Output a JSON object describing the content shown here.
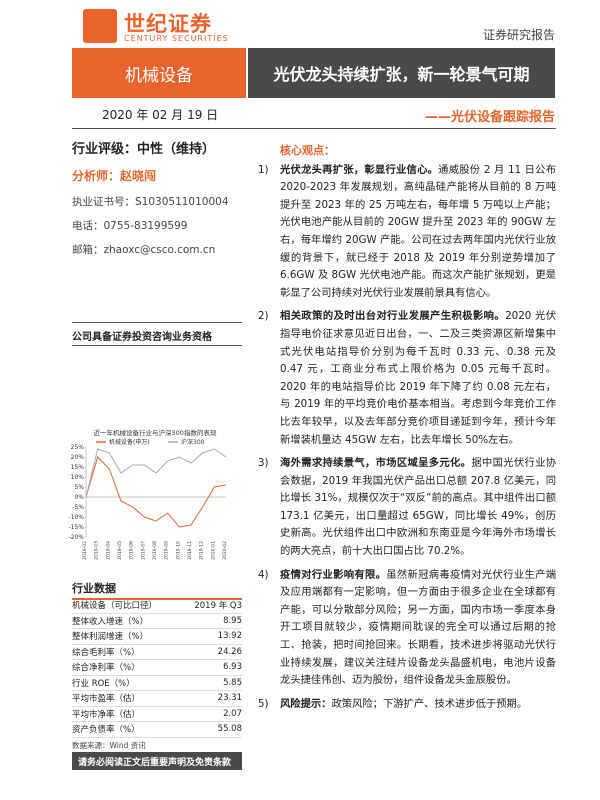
{
  "header": {
    "logo_cn": "世纪证券",
    "logo_en": "CENTURY SECURITIES",
    "doc_type": "证券研究报告",
    "sector": "机械设备",
    "headline": "光伏龙头持续扩张，新一轮景气可期",
    "date": "2020 年 02 月 19 日",
    "subtitle": "——光伏设备跟踪报告"
  },
  "sidebar": {
    "rating": "行业评级：中性（维持）",
    "analyst": "分析师：赵晓闯",
    "license": "执业证书号：S1030511010004",
    "phone": "电话：0755-83199599",
    "email": "邮箱：zhaoxc@csco.com.cn",
    "qualification": "公司具备证券投资咨询业务资格"
  },
  "chart_data": {
    "type": "line",
    "title": "近一年机械设备行业与沪深300指数的表现",
    "categories": [
      "2019-02",
      "2019-03",
      "2019-04",
      "2019-05",
      "2019-06",
      "2019-07",
      "2019-08",
      "2019-09",
      "2019-10",
      "2019-11",
      "2019-12",
      "2020-01",
      "2020-02"
    ],
    "x": [
      0,
      1,
      2,
      3,
      4,
      5,
      6,
      7,
      8,
      9,
      10,
      11,
      12
    ],
    "series": [
      {
        "name": "机械设备(申万)",
        "color": "#e8642c",
        "values": [
          0,
          20,
          14,
          -2,
          -5,
          -10,
          -12,
          -8,
          -15,
          -14,
          -5,
          5,
          6
        ]
      },
      {
        "name": "沪深300",
        "color": "#aaaaaa",
        "values": [
          0,
          24,
          22,
          12,
          16,
          16,
          12,
          18,
          20,
          17,
          22,
          24,
          20
        ]
      }
    ],
    "xlim": [
      0,
      12
    ],
    "ylim": [
      -20,
      25
    ],
    "yticks": [
      {
        "value": 25,
        "label": "25%"
      },
      {
        "value": 20,
        "label": "20%"
      },
      {
        "value": 15,
        "label": "15%"
      },
      {
        "value": 10,
        "label": "10%"
      },
      {
        "value": 5,
        "label": "5%"
      },
      {
        "value": 0,
        "label": "0%"
      },
      {
        "value": -5,
        "label": "-5%"
      },
      {
        "value": -10,
        "label": "-10%"
      },
      {
        "value": -15,
        "label": "-15%"
      },
      {
        "value": -20,
        "label": "-20%"
      }
    ]
  },
  "industry_table": {
    "title": "行业数据",
    "rows": [
      [
        "机械设备（可比口径）",
        "2019 年 Q3"
      ],
      [
        "整体收入增速（%）",
        "8.95"
      ],
      [
        "整体利润增速（%）",
        "13.92"
      ],
      [
        "综合毛利率（%）",
        "24.26"
      ],
      [
        "综合净利率（%）",
        "6.93"
      ],
      [
        "行业 ROE（%）",
        "5.85"
      ],
      [
        "平均市盈率（估）",
        "23.31"
      ],
      [
        "平均市净率（估）",
        "2.07"
      ],
      [
        "资产负债率（%）",
        "55.08"
      ]
    ],
    "source": "数据来源：Wind 资讯"
  },
  "footer": "请务必阅读正文后重要声明及免责条款",
  "core": {
    "title": "核心观点：",
    "items": [
      {
        "num": "1)",
        "lead": "光伏龙头再扩张，彰显行业信心。",
        "text": "通威股份 2 月 11 日公布 2020-2023 年发展规划，高纯晶硅产能将从目前的 8 万吨提升至 2023 年的 25 万吨左右，每年增 5 万吨以上产能；光伏电池产能从目前的 20GW 提升至 2023 年的 90GW 左右，每年增约 20GW 产能。公司在过去两年国内光伏行业放缓的背景下，就已经于 2018 及 2019 年分别逆势增加了 6.6GW 及 8GW 光伏电池产能。而这次产能扩张规划，更是彰显了公司持续对光伏行业发展前景具有信心。"
      },
      {
        "num": "2)",
        "lead": "相关政策的及时出台对行业发展产生积极影响。",
        "text": "2020 光伏指导电价征求意见近日出台，一、二及三类资源区新增集中式光伏电站指导价分别为每千瓦时 0.33 元、0.38 元及 0.47 元，工商业分布式上限价格为 0.05 元每千瓦时。2020 年的电站指导价比 2019 年下降了约 0.08 元左右，与 2019 年的平均竞价电价基本相当。考虑到今年竞价工作比去年较早，以及去年部分竞价项目递延到今年，预计今年新增装机量达 45GW 左右，比去年增长 50%左右。"
      },
      {
        "num": "3)",
        "lead": "海外需求持续景气，市场区域呈多元化。",
        "text": "据中国光伏行业协会数据，2019 年我国光伏产品出口总额 207.8 亿美元，同比增长 31%，规模仅次于“双反”前的高点。其中组件出口额 173.1 亿美元，出口量超过 65GW，同比增长 49%，创历史新高。光伏组件出口中欧洲和东南亚是今年海外市场增长的两大亮点，前十大出口国占比 70.2%。"
      },
      {
        "num": "4)",
        "lead": "疫情对行业影响有限。",
        "text": "虽然新冠病毒疫情对光伏行业生产端及应用端都有一定影响，但一方面由于很多企业在全球都有产能，可以分散部分风险；另一方面，国内市场一季度本身开工项目就较少，疫情期间耽误的完全可以通过后期的抢工、抢装，把时间抢回来。长期看，技术进步将驱动光伏行业持续发展，建议关注硅片设备龙头晶盛机电，电池片设备龙头捷佳伟创、迈为股份，组件设备龙头金辰股份。"
      },
      {
        "num": "5)",
        "lead": "风险提示：",
        "text": "政策风险；下游扩产、技术进步低于预期。"
      }
    ]
  }
}
